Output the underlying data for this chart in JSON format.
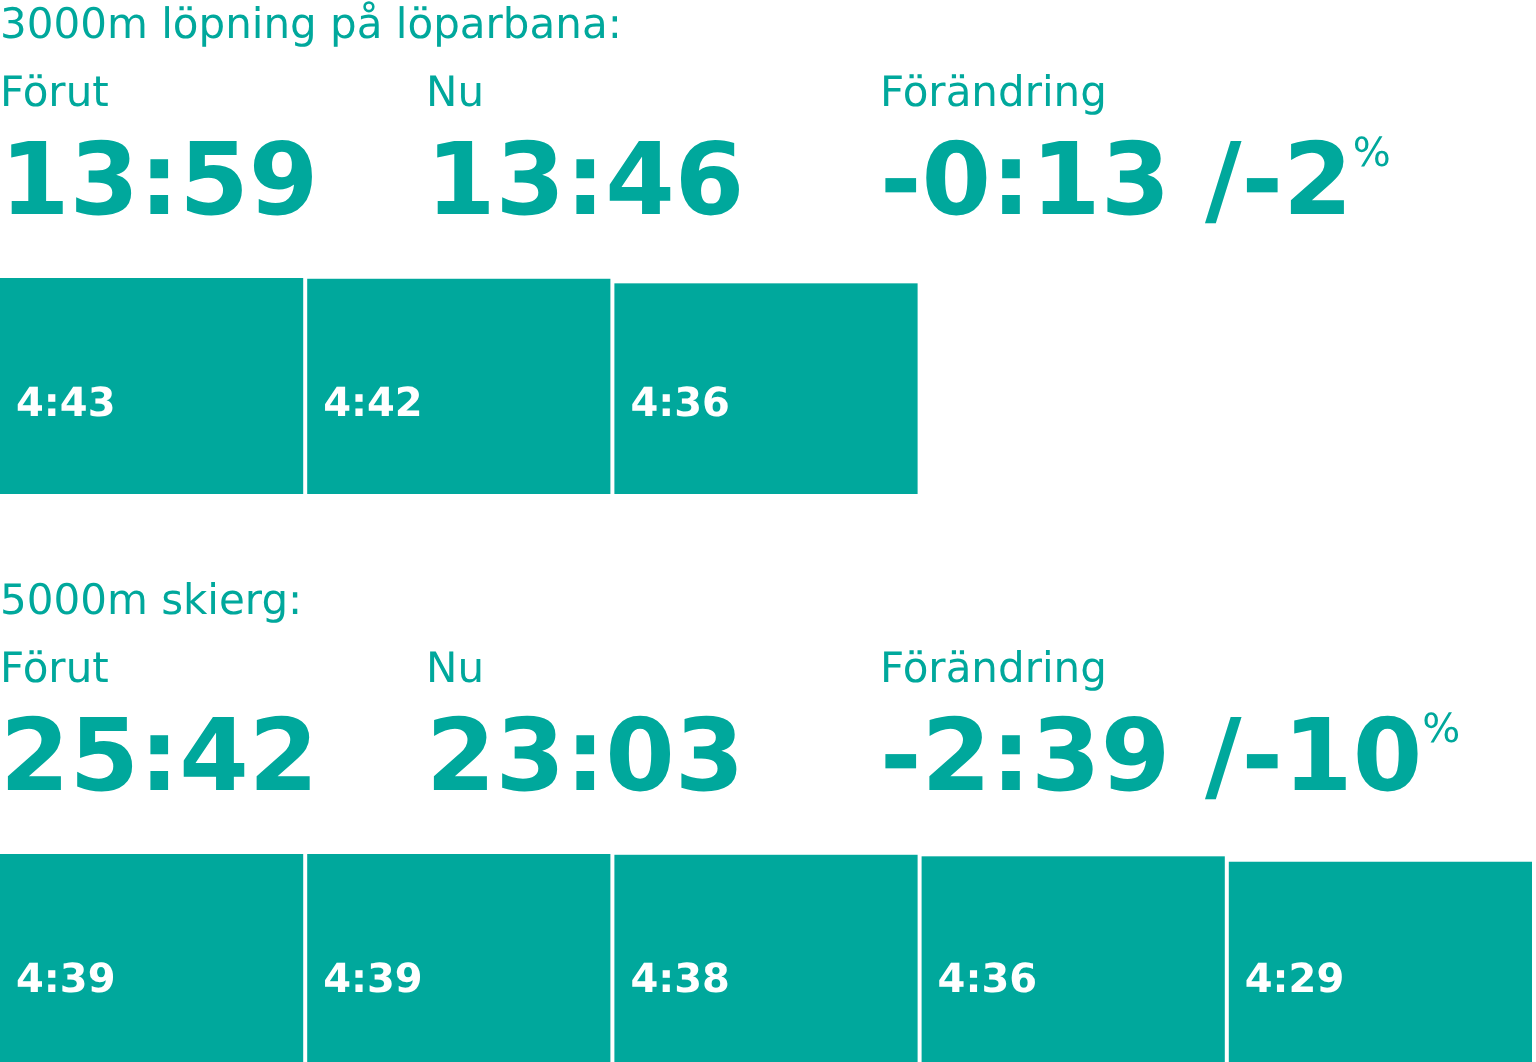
{
  "chart_data": [
    {
      "type": "bar",
      "title": "3000m löpning på löparbana:",
      "annotations": [
        "Förut",
        "13:59",
        "Nu",
        "13:46",
        "Förändring",
        "-0:13 /-2$^{%}$"
      ],
      "categories": [
        null,
        null,
        null
      ],
      "values": [
        4.7167,
        4.7,
        4.6
      ],
      "value_labels": [
        "4:43",
        "4:42",
        "4:36"
      ],
      "color": "#00a89c"
    },
    {
      "type": "bar",
      "title": "5000m skierg:",
      "annotations": [
        "Förut",
        "25:42",
        "Nu",
        "23:03",
        "Förändring",
        "-2:39 /-10$^{%}$"
      ],
      "categories": [
        null,
        null,
        null,
        null,
        null
      ],
      "values": [
        4.65,
        4.65,
        4.6333,
        4.6,
        4.4833
      ],
      "value_labels": [
        "4:39",
        "4:39",
        "4:38",
        "4:36",
        "4:29"
      ],
      "color": "#00a89c"
    }
  ]
}
